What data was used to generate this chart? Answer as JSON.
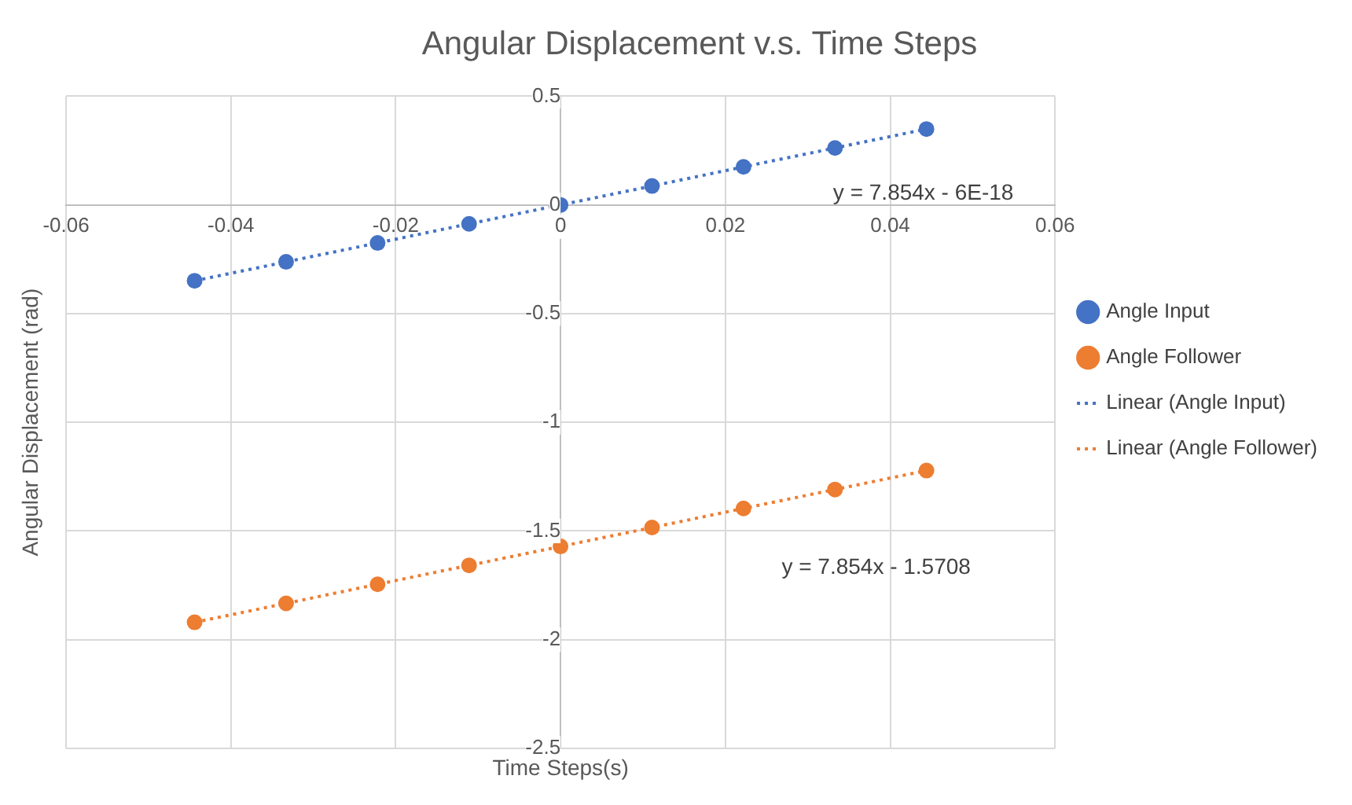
{
  "chart_data": {
    "type": "scatter",
    "title": "Angular Displacement v.s. Time Steps",
    "xlabel": "Time Steps(s)",
    "ylabel": "Angular Displacement (rad)",
    "x": [
      -0.0444,
      -0.0333,
      -0.0222,
      -0.0111,
      0,
      0.0111,
      0.0222,
      0.0333,
      0.0444
    ],
    "series": [
      {
        "name": "Angle Input",
        "type": "scatter",
        "color": "#4472c4",
        "marker": "circle",
        "values": [
          -0.349,
          -0.262,
          -0.175,
          -0.087,
          0,
          0.087,
          0.175,
          0.262,
          0.349
        ]
      },
      {
        "name": "Angle Follower",
        "type": "scatter",
        "color": "#ed7d31",
        "marker": "circle",
        "values": [
          -1.92,
          -1.833,
          -1.745,
          -1.658,
          -1.571,
          -1.484,
          -1.396,
          -1.309,
          -1.222
        ]
      },
      {
        "name": "Linear (Angle Input)",
        "type": "line",
        "color": "#4472c4",
        "marker": "none",
        "line_style": "dotted",
        "values": [
          -0.349,
          -0.262,
          -0.175,
          -0.087,
          0,
          0.087,
          0.175,
          0.262,
          0.349
        ]
      },
      {
        "name": "Linear (Angle Follower)",
        "type": "line",
        "color": "#ed7d31",
        "marker": "none",
        "line_style": "dotted",
        "values": [
          -1.92,
          -1.833,
          -1.745,
          -1.658,
          -1.571,
          -1.484,
          -1.396,
          -1.309,
          -1.222
        ]
      }
    ],
    "xlim": [
      -0.06,
      0.06
    ],
    "xticks": [
      -0.06,
      -0.04,
      -0.02,
      0,
      0.02,
      0.04,
      0.06
    ],
    "ylim": [
      -2.5,
      0.5
    ],
    "yticks": [
      -2.5,
      -2,
      -1.5,
      -1,
      -0.5,
      0,
      0.5
    ],
    "grid": true,
    "legend": "right",
    "annotations": [
      "y = 7.854x - 6E-18",
      "y = 7.854x - 1.5708"
    ]
  }
}
